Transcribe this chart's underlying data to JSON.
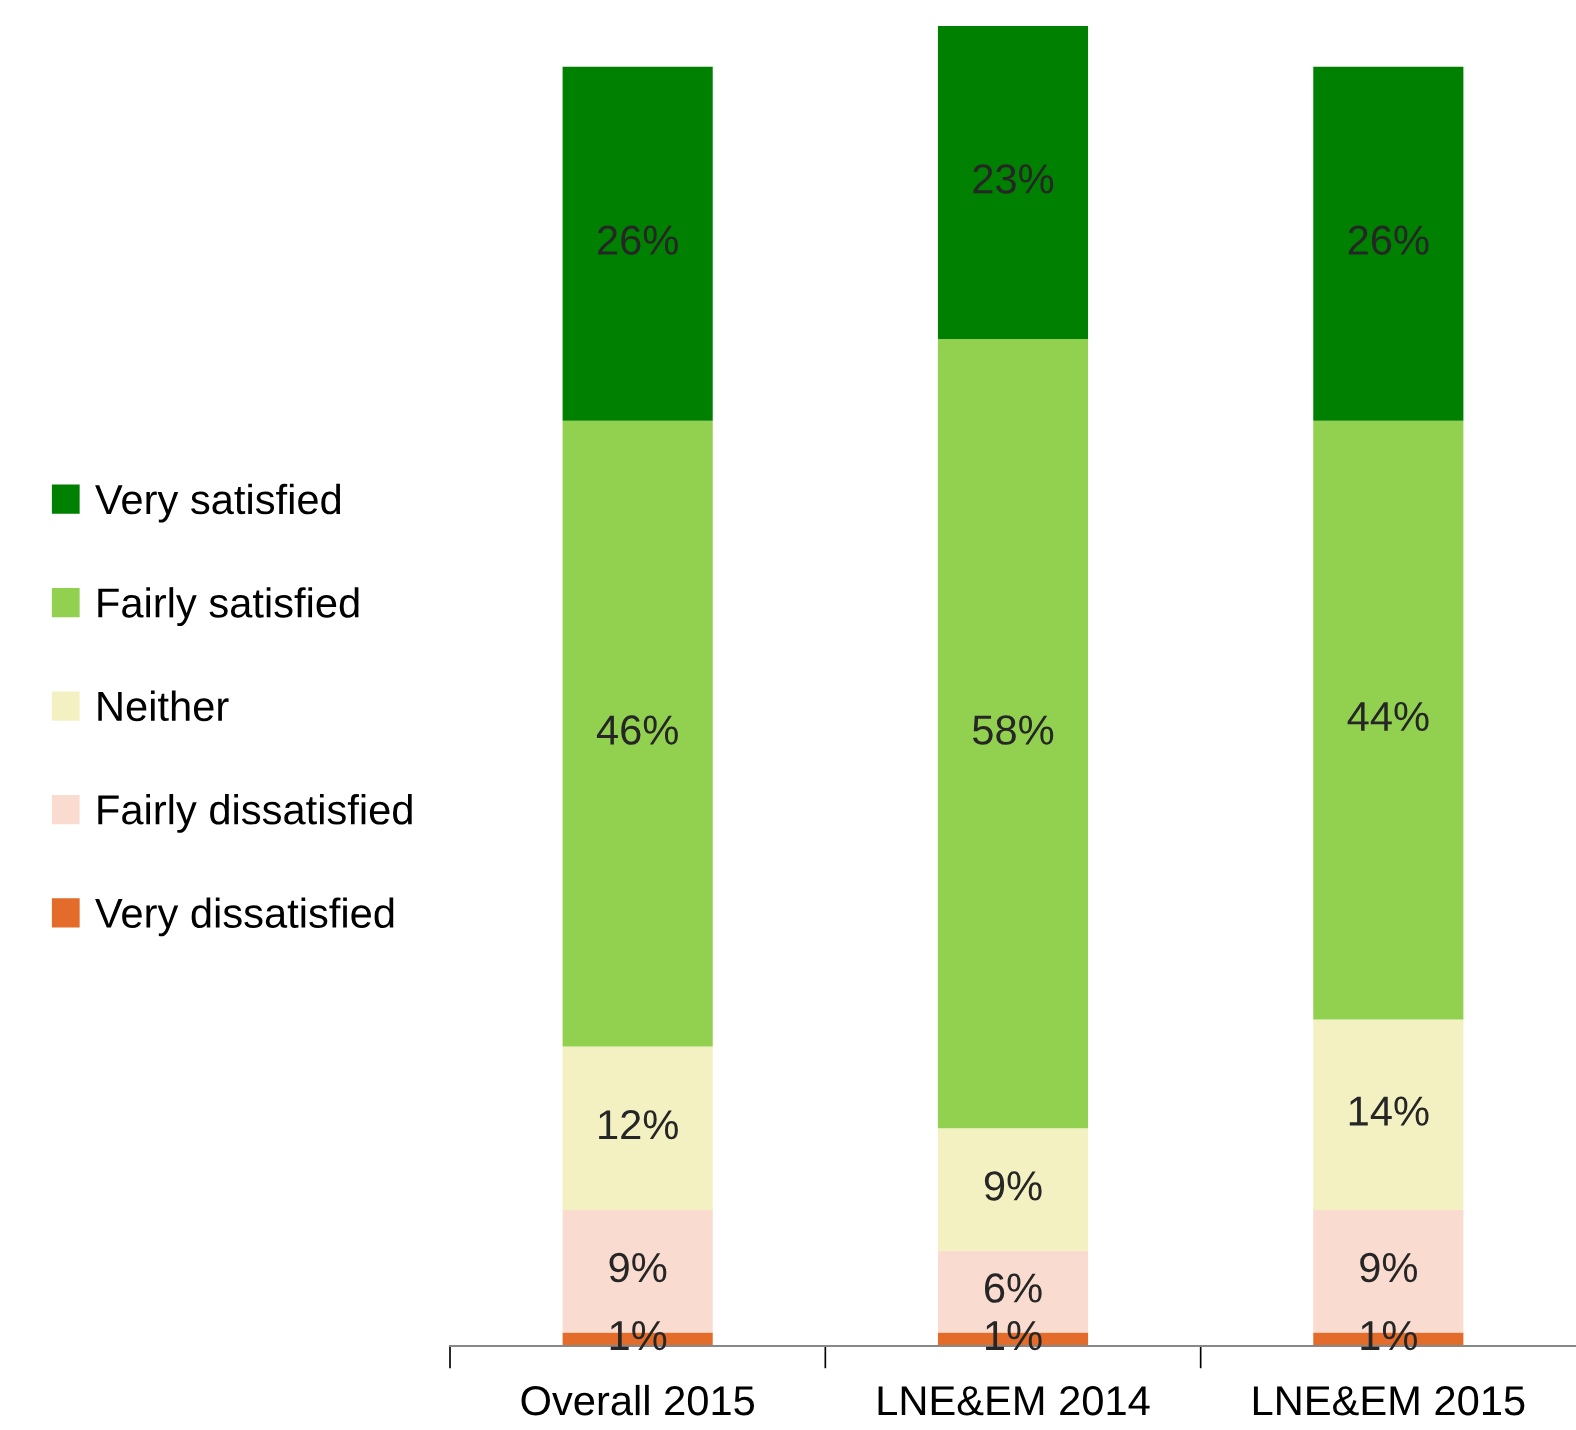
{
  "chart_data": {
    "type": "bar",
    "stacked": true,
    "categories": [
      "Overall 2015",
      "LNE&EM 2014",
      "LNE&EM 2015"
    ],
    "series": [
      {
        "name": "Very dissatisfied",
        "color": "#e36c2a",
        "values": [
          1,
          1,
          1
        ],
        "value_labels": [
          "1%",
          "1%",
          "1%"
        ]
      },
      {
        "name": "Fairly dissatisfied",
        "color": "#f9dccf",
        "values": [
          9,
          6,
          9
        ],
        "value_labels": [
          "9%",
          "6%",
          "9%"
        ]
      },
      {
        "name": "Neither",
        "color": "#f3f1c2",
        "values": [
          12,
          9,
          14
        ],
        "value_labels": [
          "12%",
          "9%",
          "14%"
        ]
      },
      {
        "name": "Fairly satisfied",
        "color": "#92d050",
        "values": [
          46,
          58,
          44
        ],
        "value_labels": [
          "46%",
          "58%",
          "44%"
        ]
      },
      {
        "name": "Very satisfied",
        "color": "#008000",
        "values": [
          26,
          23,
          26
        ],
        "value_labels": [
          "26%",
          "23%",
          "26%"
        ]
      }
    ],
    "legend": "left"
  }
}
